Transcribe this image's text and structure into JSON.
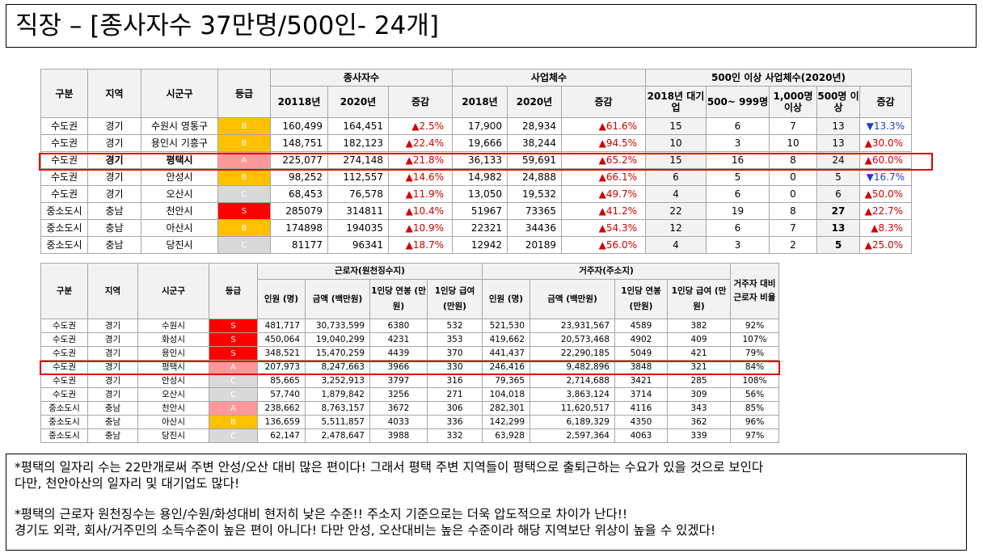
{
  "title": "직장 – [종사자수 37만명/500인- 24개]",
  "table1": {
    "headers": {
      "gubun": "구분",
      "region": "지역",
      "sigungu": "시군구",
      "grade": "등급",
      "group_workers": "종사자수",
      "group_biz": "사업체수",
      "group_500": "500인 이상 사업체수(2020년)",
      "w2018": "20118년",
      "w2020": "2020년",
      "wdelta": "증감",
      "b2018": "2018년",
      "b2020": "2020년",
      "bdelta": "증감",
      "big2018": "2018년 대기업",
      "s500": "500~ 999명",
      "s1000": "1,000명 이상",
      "s500p": "500명 이상",
      "sdelta": "증감"
    },
    "rows": [
      {
        "gubun": "수도권",
        "region": "경기",
        "sigungu": "수원시 영통구",
        "grade": "B",
        "w2018": "160,499",
        "w2020": "164,451",
        "wdelta": "▲2.5%",
        "b2018": "17,900",
        "b2020": "28,934",
        "bdelta": "▲61.6%",
        "big": "15",
        "s500": "6",
        "s1000": "7",
        "s500p": "13",
        "sdelta": "▼13.3%",
        "sdir": "down"
      },
      {
        "gubun": "수도권",
        "region": "경기",
        "sigungu": "용인시 기흥구",
        "grade": "B",
        "w2018": "148,751",
        "w2020": "182,123",
        "wdelta": "▲22.4%",
        "b2018": "19,666",
        "b2020": "38,244",
        "bdelta": "▲94.5%",
        "big": "10",
        "s500": "3",
        "s1000": "10",
        "s500p": "13",
        "sdelta": "▲30.0%",
        "sdir": "up"
      },
      {
        "gubun": "수도권",
        "region": "경기",
        "sigungu": "평택시",
        "grade": "A",
        "w2018": "225,077",
        "w2020": "274,148",
        "wdelta": "▲21.8%",
        "b2018": "36,133",
        "b2020": "59,691",
        "bdelta": "▲65.2%",
        "big": "15",
        "s500": "16",
        "s1000": "8",
        "s500p": "24",
        "sdelta": "▲60.0%",
        "sdir": "up",
        "bold_region": true
      },
      {
        "gubun": "수도권",
        "region": "경기",
        "sigungu": "안성시",
        "grade": "B",
        "w2018": "98,252",
        "w2020": "112,557",
        "wdelta": "▲14.6%",
        "b2018": "14,982",
        "b2020": "24,888",
        "bdelta": "▲66.1%",
        "big": "6",
        "s500": "5",
        "s1000": "0",
        "s500p": "5",
        "sdelta": "▼16.7%",
        "sdir": "down"
      },
      {
        "gubun": "수도권",
        "region": "경기",
        "sigungu": "오산시",
        "grade": "C",
        "w2018": "68,453",
        "w2020": "76,578",
        "wdelta": "▲11.9%",
        "b2018": "13,050",
        "b2020": "19,532",
        "bdelta": "▲49.7%",
        "big": "4",
        "s500": "6",
        "s1000": "0",
        "s500p": "6",
        "sdelta": "▲50.0%",
        "sdir": "up"
      },
      {
        "gubun": "중소도시",
        "region": "충남",
        "sigungu": "천안시",
        "grade": "S",
        "w2018": "285079",
        "w2020": "314811",
        "wdelta": "▲10.4%",
        "b2018": "51967",
        "b2020": "73365",
        "bdelta": "▲41.2%",
        "big": "22",
        "s500": "19",
        "s1000": "8",
        "s500p": "27",
        "sdelta": "▲22.7%",
        "sdir": "up",
        "bold_500p": true
      },
      {
        "gubun": "중소도시",
        "region": "충남",
        "sigungu": "아산시",
        "grade": "B",
        "w2018": "174898",
        "w2020": "194035",
        "wdelta": "▲10.9%",
        "b2018": "22321",
        "b2020": "34436",
        "bdelta": "▲54.3%",
        "big": "12",
        "s500": "6",
        "s1000": "7",
        "s500p": "13",
        "sdelta": "▲8.3%",
        "sdir": "up",
        "bold_500p": true
      },
      {
        "gubun": "중소도시",
        "region": "충남",
        "sigungu": "당진시",
        "grade": "C",
        "w2018": "81177",
        "w2020": "96341",
        "wdelta": "▲18.7%",
        "b2018": "12942",
        "b2020": "20189",
        "bdelta": "▲56.0%",
        "big": "4",
        "s500": "3",
        "s1000": "2",
        "s500p": "5",
        "sdelta": "▲25.0%",
        "sdir": "up",
        "bold_500p": true
      }
    ]
  },
  "table2": {
    "headers": {
      "gubun": "구분",
      "region": "지역",
      "sigungu": "시군구",
      "grade": "등급",
      "group_work": "근로자(원천징수지)",
      "group_res": "거주자(주소지)",
      "ratio": "거주자 대비 근로자 비율",
      "people": "인원 (명)",
      "amount": "금액 (백만원)",
      "per_year": "1인당 연봉 (만원)",
      "per_month": "1인당 급여 (만원)"
    },
    "rows": [
      {
        "gubun": "수도권",
        "region": "경기",
        "sigungu": "수원시",
        "grade": "S",
        "wp": "481,717",
        "wa": "30,733,599",
        "wy": "6380",
        "wm": "532",
        "rp": "521,530",
        "ra": "23,931,567",
        "ry": "4589",
        "rm": "382",
        "ratio": "92%"
      },
      {
        "gubun": "수도권",
        "region": "경기",
        "sigungu": "화성시",
        "grade": "S",
        "wp": "450,064",
        "wa": "19,040,299",
        "wy": "4231",
        "wm": "353",
        "rp": "419,662",
        "ra": "20,573,468",
        "ry": "4902",
        "rm": "409",
        "ratio": "107%"
      },
      {
        "gubun": "수도권",
        "region": "경기",
        "sigungu": "용인시",
        "grade": "S",
        "wp": "348,521",
        "wa": "15,470,259",
        "wy": "4439",
        "wm": "370",
        "rp": "441,437",
        "ra": "22,290,185",
        "ry": "5049",
        "rm": "421",
        "ratio": "79%"
      },
      {
        "gubun": "수도권",
        "region": "경기",
        "sigungu": "평택시",
        "grade": "A",
        "wp": "207,973",
        "wa": "8,247,663",
        "wy": "3966",
        "wm": "330",
        "rp": "246,416",
        "ra": "9,482,896",
        "ry": "3848",
        "rm": "321",
        "ratio": "84%"
      },
      {
        "gubun": "수도권",
        "region": "경기",
        "sigungu": "안성시",
        "grade": "C",
        "wp": "85,665",
        "wa": "3,252,913",
        "wy": "3797",
        "wm": "316",
        "rp": "79,365",
        "ra": "2,714,688",
        "ry": "3421",
        "rm": "285",
        "ratio": "108%"
      },
      {
        "gubun": "수도권",
        "region": "경기",
        "sigungu": "오산시",
        "grade": "C",
        "wp": "57,740",
        "wa": "1,879,842",
        "wy": "3256",
        "wm": "271",
        "rp": "104,018",
        "ra": "3,863,124",
        "ry": "3714",
        "rm": "309",
        "ratio": "56%"
      },
      {
        "gubun": "중소도시",
        "region": "충남",
        "sigungu": "천안시",
        "grade": "A",
        "wp": "238,662",
        "wa": "8,763,157",
        "wy": "3672",
        "wm": "306",
        "rp": "282,301",
        "ra": "11,620,517",
        "ry": "4116",
        "rm": "343",
        "ratio": "85%"
      },
      {
        "gubun": "중소도시",
        "region": "충남",
        "sigungu": "아산시",
        "grade": "B",
        "wp": "136,659",
        "wa": "5,511,857",
        "wy": "4033",
        "wm": "336",
        "rp": "142,299",
        "ra": "6,189,329",
        "ry": "4350",
        "rm": "362",
        "ratio": "96%"
      },
      {
        "gubun": "중소도시",
        "region": "충남",
        "sigungu": "당진시",
        "grade": "C",
        "wp": "62,147",
        "wa": "2,478,647",
        "wy": "3988",
        "wm": "332",
        "rp": "63,928",
        "ra": "2,597,364",
        "ry": "4063",
        "rm": "339",
        "ratio": "97%"
      }
    ]
  },
  "notes": {
    "line1": "*평택의 일자리 수는 22만개로써 주변 안성/오산 대비 많은 편이다! 그래서 평택 주변 지역들이 평택으로 출퇴근하는 수요가 있을 것으로 보인다",
    "line2": "다만, 천안아산의 일자리 및 대기업도 많다!",
    "line3": "*평택의 근로자 원천징수는 용인/수원/화성대비 현저히 낮은 수준!! 주소지 기준으로는 더욱 압도적으로 차이가 난다!!",
    "line4": "경기도 외곽, 회사/거주민의 소득수준이 높은 편이 아니다! 다만 안성, 오산대비는 높은 수준이라 해당 지역보단 위상이 높을 수 있겠다!"
  },
  "colors": {
    "grade_S": "#ff0000",
    "grade_A": "#ff9999",
    "grade_B": "#ffc000",
    "grade_C": "#d9d9d9",
    "increase": "#d00000",
    "decrease": "#1f3fbf",
    "highlight": "#e00000"
  }
}
